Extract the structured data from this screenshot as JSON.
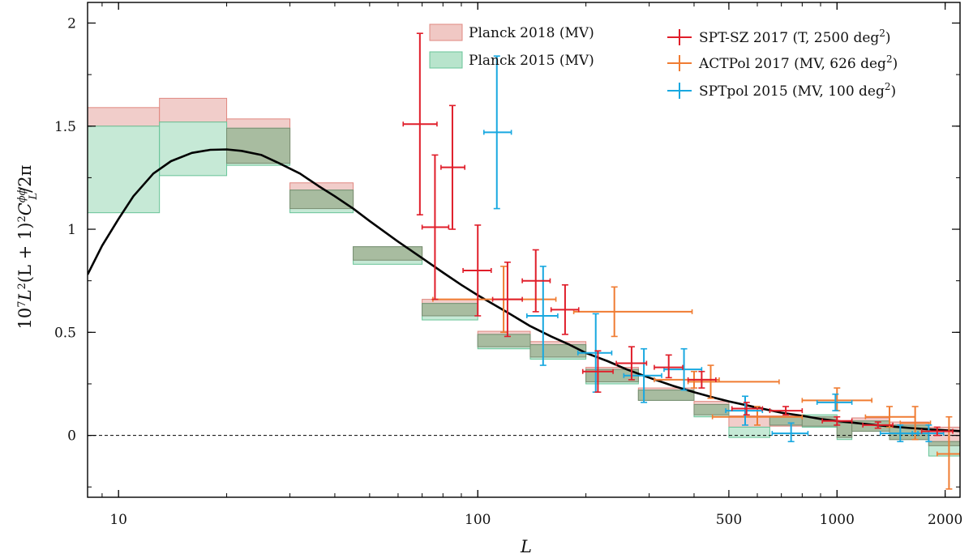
{
  "chart_data": {
    "type": "scatter",
    "title": "",
    "xlabel": "L",
    "ylabel": "10⁷L²(L + 1)²C_L^{ϕϕ}/2π",
    "ylabel_parts": {
      "pre": "10",
      "pre_sup": "7",
      "l1": "L",
      "l1_sup": "2",
      "mid": "(L + 1)",
      "mid_sup": "2",
      "c": "C",
      "c_sub": "L",
      "c_sup": "ϕϕ",
      "post": "/2π"
    },
    "x_scale": "log",
    "xlim": [
      8.2,
      2200
    ],
    "ylim": [
      -0.3,
      2.1
    ],
    "x_ticks": [
      {
        "value": 10,
        "label": "10"
      },
      {
        "value": 100,
        "label": "100"
      },
      {
        "value": 500,
        "label": "500"
      },
      {
        "value": 1000,
        "label": "1000"
      },
      {
        "value": 2000,
        "label": "2000"
      }
    ],
    "y_ticks": [
      {
        "value": 0,
        "label": "0"
      },
      {
        "value": 0.5,
        "label": "0.5"
      },
      {
        "value": 1,
        "label": "1"
      },
      {
        "value": 1.5,
        "label": "1.5"
      },
      {
        "value": 2,
        "label": "2"
      }
    ],
    "zero_line": true,
    "legend_position": "top-right",
    "colors": {
      "planck2018_fill": "#f0c8c4",
      "planck2018_edge": "#e08880",
      "planck2015_fill": "#b8e4cc",
      "planck2015_edge": "#68c498",
      "overlap": "#a8bca0",
      "overlap_edge": "#7a8e72",
      "sptsz": "#e01e2a",
      "actpol": "#f07c32",
      "sptpol": "#18a8e0",
      "theory": "#000000"
    },
    "legend": {
      "planck2018": "Planck 2018 (MV)",
      "planck2015": "Planck 2015 (MV)",
      "sptsz_pre": "SPT-SZ 2017 (T, 2500 deg",
      "sptsz_post": ")",
      "actpol_pre": "ACTPol 2017 (MV, 626 deg",
      "actpol_post": ")",
      "sptpol_pre": "SPTpol 2015 (MV, 100 deg",
      "sptpol_post": ")",
      "sup": "2"
    },
    "theory_curve": [
      [
        8.2,
        0.78
      ],
      [
        9,
        0.92
      ],
      [
        10,
        1.05
      ],
      [
        11,
        1.16
      ],
      [
        12.5,
        1.27
      ],
      [
        14,
        1.33
      ],
      [
        16,
        1.37
      ],
      [
        18,
        1.385
      ],
      [
        20,
        1.387
      ],
      [
        22,
        1.38
      ],
      [
        25,
        1.36
      ],
      [
        28,
        1.32
      ],
      [
        32,
        1.27
      ],
      [
        36,
        1.21
      ],
      [
        40,
        1.16
      ],
      [
        45,
        1.1
      ],
      [
        50,
        1.04
      ],
      [
        60,
        0.94
      ],
      [
        70,
        0.86
      ],
      [
        80,
        0.79
      ],
      [
        90,
        0.73
      ],
      [
        100,
        0.68
      ],
      [
        120,
        0.6
      ],
      [
        140,
        0.53
      ],
      [
        160,
        0.48
      ],
      [
        180,
        0.44
      ],
      [
        200,
        0.4
      ],
      [
        230,
        0.36
      ],
      [
        260,
        0.32
      ],
      [
        300,
        0.28
      ],
      [
        350,
        0.24
      ],
      [
        400,
        0.21
      ],
      [
        450,
        0.185
      ],
      [
        500,
        0.165
      ],
      [
        600,
        0.135
      ],
      [
        700,
        0.11
      ],
      [
        800,
        0.095
      ],
      [
        900,
        0.08
      ],
      [
        1000,
        0.07
      ],
      [
        1200,
        0.055
      ],
      [
        1400,
        0.044
      ],
      [
        1600,
        0.036
      ],
      [
        1800,
        0.03
      ],
      [
        2000,
        0.025
      ],
      [
        2200,
        0.021
      ]
    ],
    "planck2018_bins": [
      {
        "x0": 8.2,
        "x1": 13,
        "y0": 1.5,
        "y1": 1.59
      },
      {
        "x0": 13,
        "x1": 20,
        "y0": 1.52,
        "y1": 1.635
      },
      {
        "x0": 20,
        "x1": 30,
        "y0": 1.32,
        "y1": 1.535
      },
      {
        "x0": 30,
        "x1": 45,
        "y0": 1.1,
        "y1": 1.225
      },
      {
        "x0": 45,
        "x1": 70,
        "y0": 0.85,
        "y1": 0.915
      },
      {
        "x0": 70,
        "x1": 100,
        "y0": 0.58,
        "y1": 0.66
      },
      {
        "x0": 100,
        "x1": 140,
        "y0": 0.43,
        "y1": 0.505
      },
      {
        "x0": 140,
        "x1": 200,
        "y0": 0.38,
        "y1": 0.455
      },
      {
        "x0": 200,
        "x1": 280,
        "y0": 0.26,
        "y1": 0.33
      },
      {
        "x0": 280,
        "x1": 400,
        "y0": 0.17,
        "y1": 0.23
      },
      {
        "x0": 400,
        "x1": 500,
        "y0": 0.1,
        "y1": 0.165
      },
      {
        "x0": 500,
        "x1": 650,
        "y0": 0.04,
        "y1": 0.095
      },
      {
        "x0": 650,
        "x1": 800,
        "y0": 0.045,
        "y1": 0.095
      },
      {
        "x0": 800,
        "x1": 1000,
        "y0": 0.045,
        "y1": 0.09
      },
      {
        "x0": 1000,
        "x1": 1100,
        "y0": -0.01,
        "y1": 0.07
      },
      {
        "x0": 1100,
        "x1": 1400,
        "y0": 0.02,
        "y1": 0.085
      },
      {
        "x0": 1400,
        "x1": 1800,
        "y0": -0.02,
        "y1": 0.065
      },
      {
        "x0": 1800,
        "x1": 2200,
        "y0": -0.05,
        "y1": 0.04
      }
    ],
    "planck2015_bins": [
      {
        "x0": 8.2,
        "x1": 13,
        "y0": 1.08,
        "y1": 1.5
      },
      {
        "x0": 13,
        "x1": 20,
        "y0": 1.26,
        "y1": 1.52
      },
      {
        "x0": 20,
        "x1": 30,
        "y0": 1.31,
        "y1": 1.49
      },
      {
        "x0": 30,
        "x1": 45,
        "y0": 1.08,
        "y1": 1.19
      },
      {
        "x0": 45,
        "x1": 70,
        "y0": 0.83,
        "y1": 0.915
      },
      {
        "x0": 70,
        "x1": 100,
        "y0": 0.56,
        "y1": 0.64
      },
      {
        "x0": 100,
        "x1": 140,
        "y0": 0.42,
        "y1": 0.49
      },
      {
        "x0": 140,
        "x1": 200,
        "y0": 0.37,
        "y1": 0.44
      },
      {
        "x0": 200,
        "x1": 280,
        "y0": 0.25,
        "y1": 0.32
      },
      {
        "x0": 280,
        "x1": 400,
        "y0": 0.17,
        "y1": 0.22
      },
      {
        "x0": 400,
        "x1": 500,
        "y0": 0.09,
        "y1": 0.15
      },
      {
        "x0": 500,
        "x1": 650,
        "y0": -0.01,
        "y1": 0.04
      },
      {
        "x0": 650,
        "x1": 800,
        "y0": 0.05,
        "y1": 0.09
      },
      {
        "x0": 800,
        "x1": 1000,
        "y0": 0.04,
        "y1": 0.1
      },
      {
        "x0": 1000,
        "x1": 1100,
        "y0": -0.02,
        "y1": 0.06
      },
      {
        "x0": 1100,
        "x1": 1400,
        "y0": 0.02,
        "y1": 0.07
      },
      {
        "x0": 1400,
        "x1": 1800,
        "y0": -0.02,
        "y1": 0.05
      },
      {
        "x0": 1800,
        "x1": 2200,
        "y0": -0.1,
        "y1": -0.03
      }
    ],
    "sptsz_points": [
      {
        "x": 69,
        "xlo": 62,
        "xhi": 77,
        "y": 1.51,
        "ylo": 1.07,
        "yhi": 1.95
      },
      {
        "x": 85,
        "xlo": 79,
        "xhi": 92,
        "y": 1.3,
        "ylo": 1.0,
        "yhi": 1.6
      },
      {
        "x": 76,
        "xlo": 70,
        "xhi": 83,
        "y": 1.01,
        "ylo": 0.66,
        "yhi": 1.36
      },
      {
        "x": 100,
        "xlo": 91,
        "xhi": 109,
        "y": 0.8,
        "ylo": 0.58,
        "yhi": 1.02
      },
      {
        "x": 121,
        "xlo": 110,
        "xhi": 133,
        "y": 0.66,
        "ylo": 0.48,
        "yhi": 0.84
      },
      {
        "x": 145,
        "xlo": 133,
        "xhi": 159,
        "y": 0.75,
        "ylo": 0.6,
        "yhi": 0.9
      },
      {
        "x": 175,
        "xlo": 160,
        "xhi": 191,
        "y": 0.61,
        "ylo": 0.49,
        "yhi": 0.73
      },
      {
        "x": 216,
        "xlo": 196,
        "xhi": 238,
        "y": 0.31,
        "ylo": 0.21,
        "yhi": 0.41
      },
      {
        "x": 268,
        "xlo": 243,
        "xhi": 295,
        "y": 0.35,
        "ylo": 0.27,
        "yhi": 0.43
      },
      {
        "x": 340,
        "xlo": 310,
        "xhi": 372,
        "y": 0.33,
        "ylo": 0.28,
        "yhi": 0.39
      },
      {
        "x": 420,
        "xlo": 385,
        "xhi": 460,
        "y": 0.27,
        "ylo": 0.23,
        "yhi": 0.31
      },
      {
        "x": 560,
        "xlo": 510,
        "xhi": 620,
        "y": 0.13,
        "ylo": 0.1,
        "yhi": 0.16
      },
      {
        "x": 720,
        "xlo": 650,
        "xhi": 800,
        "y": 0.12,
        "ylo": 0.1,
        "yhi": 0.14
      },
      {
        "x": 1000,
        "xlo": 910,
        "xhi": 1100,
        "y": 0.07,
        "ylo": 0.05,
        "yhi": 0.09
      },
      {
        "x": 1300,
        "xlo": 1180,
        "xhi": 1430,
        "y": 0.05,
        "ylo": 0.035,
        "yhi": 0.065
      },
      {
        "x": 1900,
        "xlo": 1720,
        "xhi": 2100,
        "y": 0.02,
        "ylo": 0.0,
        "yhi": 0.04
      }
    ],
    "actpol_points": [
      {
        "x": 118,
        "xlo": 75,
        "xhi": 165,
        "y": 0.66,
        "ylo": 0.5,
        "yhi": 0.82
      },
      {
        "x": 240,
        "xlo": 185,
        "xhi": 395,
        "y": 0.6,
        "ylo": 0.48,
        "yhi": 0.72
      },
      {
        "x": 400,
        "xlo": 310,
        "xhi": 470,
        "y": 0.27,
        "ylo": 0.23,
        "yhi": 0.31
      },
      {
        "x": 445,
        "xlo": 385,
        "xhi": 690,
        "y": 0.26,
        "ylo": 0.18,
        "yhi": 0.34
      },
      {
        "x": 1000,
        "xlo": 800,
        "xhi": 1250,
        "y": 0.17,
        "ylo": 0.12,
        "yhi": 0.23
      },
      {
        "x": 1400,
        "xlo": 1200,
        "xhi": 1650,
        "y": 0.09,
        "ylo": 0.04,
        "yhi": 0.14
      },
      {
        "x": 1650,
        "xlo": 1500,
        "xhi": 1820,
        "y": 0.06,
        "ylo": -0.02,
        "yhi": 0.14
      },
      {
        "x": 2050,
        "xlo": 1900,
        "xhi": 2200,
        "y": -0.09,
        "ylo": -0.26,
        "yhi": 0.09
      },
      {
        "x": 600,
        "xlo": 450,
        "xhi": 800,
        "y": 0.09,
        "ylo": 0.05,
        "yhi": 0.14
      }
    ],
    "sptpol_points": [
      {
        "x": 113,
        "xlo": 104,
        "xhi": 124,
        "y": 1.47,
        "ylo": 1.1,
        "yhi": 1.84
      },
      {
        "x": 152,
        "xlo": 137,
        "xhi": 167,
        "y": 0.58,
        "ylo": 0.34,
        "yhi": 0.82
      },
      {
        "x": 213,
        "xlo": 190,
        "xhi": 236,
        "y": 0.4,
        "ylo": 0.21,
        "yhi": 0.59
      },
      {
        "x": 290,
        "xlo": 255,
        "xhi": 325,
        "y": 0.29,
        "ylo": 0.16,
        "yhi": 0.42
      },
      {
        "x": 375,
        "xlo": 330,
        "xhi": 420,
        "y": 0.32,
        "ylo": 0.22,
        "yhi": 0.42
      },
      {
        "x": 555,
        "xlo": 490,
        "xhi": 620,
        "y": 0.12,
        "ylo": 0.05,
        "yhi": 0.19
      },
      {
        "x": 745,
        "xlo": 660,
        "xhi": 830,
        "y": 0.01,
        "ylo": -0.03,
        "yhi": 0.06
      },
      {
        "x": 990,
        "xlo": 880,
        "xhi": 1100,
        "y": 0.16,
        "ylo": 0.12,
        "yhi": 0.2
      },
      {
        "x": 1500,
        "xlo": 1320,
        "xhi": 1680,
        "y": 0.01,
        "ylo": -0.03,
        "yhi": 0.05
      },
      {
        "x": 1800,
        "xlo": 1620,
        "xhi": 1980,
        "y": 0.01,
        "ylo": -0.03,
        "yhi": 0.05
      }
    ]
  }
}
